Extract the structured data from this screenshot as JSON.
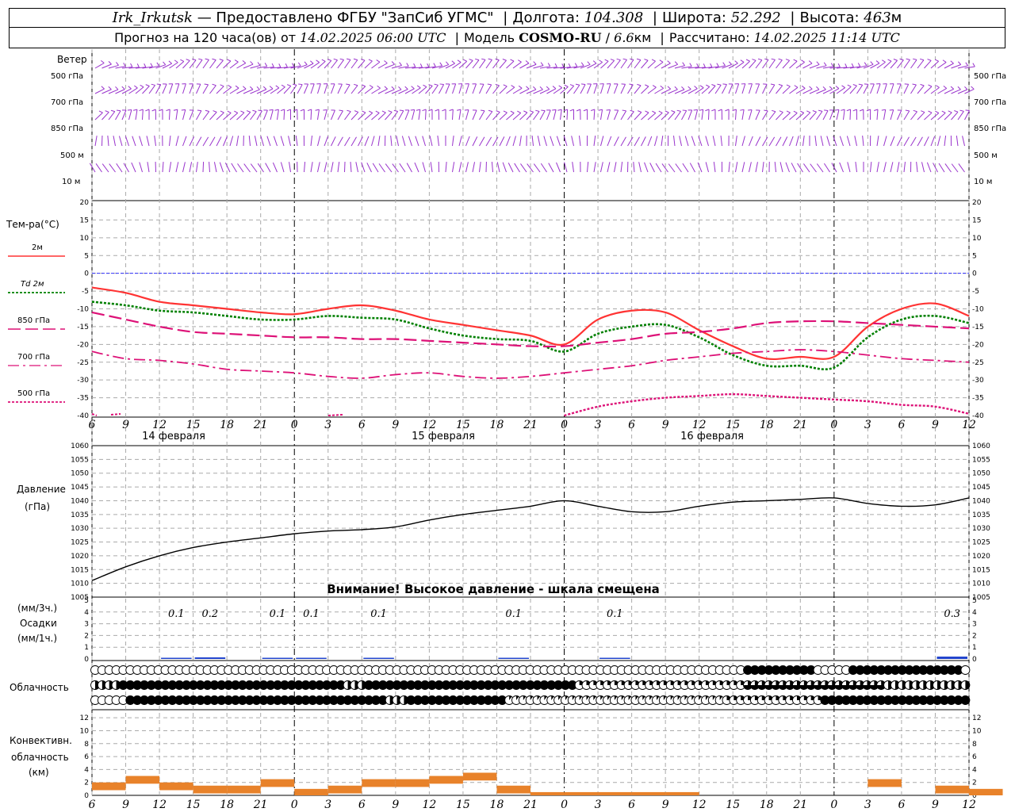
{
  "header": {
    "station": "Irk_Irkutsk",
    "dash": "—",
    "provided": "Предоставлено ФГБУ \"ЗапСиб УГМС\"",
    "lon_label": "Долгота:",
    "lon_value": "104.308",
    "lat_label": "Широта:",
    "lat_value": "52.292",
    "alt_label": "Высота:",
    "alt_value": "463",
    "alt_unit": "м",
    "forecast_label": "Прогноз на 120 часа(ов) от",
    "forecast_time": "14.02.2025 06:00 UTC",
    "model_label": "Модель",
    "model_name": "COSMO-RU",
    "model_slash": "/",
    "model_res": "6.6",
    "model_res_unit": "км",
    "calc_label": "Рассчитано:",
    "calc_time": "14.02.2025 11:14 UTC"
  },
  "labels": {
    "wind": "Ветер",
    "wind_levels": [
      "500 гПа",
      "700 гПа",
      "850 гПа",
      "500 м",
      "10   м"
    ],
    "temp_title": "Тем-ра(°С)",
    "temp_legend": [
      "2м",
      "Td  2м",
      "850 гПа",
      "700 гПа",
      "500 гПа"
    ],
    "pressure_title": "Давление",
    "pressure_unit": "(гПа)",
    "warning": "Внимание! Высокое давление - шкала смещена",
    "precip_3h": "(мм/3ч.)",
    "precip_title": "Осадки",
    "precip_1h": "(мм/1ч.)",
    "cloud_title": "Облачность",
    "conv_title": [
      "Конвективн.",
      "облачность",
      "(км)"
    ]
  },
  "colors": {
    "wind": "#9933cc",
    "t2m": "#ff3333",
    "td2m": "#008000",
    "t850": "#dd1177",
    "t700": "#dd1177",
    "t500": "#dd1177",
    "zero": "#3333ff",
    "pressure": "#000000",
    "precip": "#2244cc",
    "conv": "#e8822a",
    "grid": "#aaaaaa"
  },
  "chart_data": [
    {
      "type": "line",
      "name": "temperature",
      "x": [
        "6",
        "9",
        "12",
        "15",
        "18",
        "21",
        "0",
        "3",
        "6",
        "9",
        "12",
        "15",
        "18",
        "21",
        "0",
        "3",
        "6",
        "9",
        "12",
        "15",
        "18",
        "21",
        "0",
        "3",
        "6",
        "9",
        "12"
      ],
      "days": [
        "14 февраля",
        "15 февраля",
        "16 февраля"
      ],
      "ylim": [
        -40,
        20
      ],
      "yticks": [
        20,
        15,
        10,
        5,
        0,
        -5,
        -10,
        -15,
        -20,
        -25,
        -30,
        -35,
        -40
      ],
      "series": [
        {
          "name": "2м",
          "values": [
            -4,
            -5.5,
            -8,
            -9,
            -10,
            -11,
            -11.5,
            -10,
            -9,
            -10.5,
            -13,
            -14.5,
            -16,
            -17.5,
            -20,
            -13,
            -10.5,
            -11,
            -16,
            -20.5,
            -24,
            -23.5,
            -23.5,
            -15,
            -10,
            -8.5,
            -12
          ]
        },
        {
          "name": "Td  2м",
          "values": [
            -8,
            -9,
            -10.5,
            -11,
            -12,
            -13,
            -13,
            -12,
            -12.5,
            -13,
            -15.5,
            -17.5,
            -18.5,
            -19,
            -22,
            -17,
            -15,
            -14.5,
            -18,
            -23,
            -26,
            -26,
            -26.5,
            -18,
            -13,
            -12,
            -14
          ]
        },
        {
          "name": "850 гПа",
          "values": [
            -11,
            -13,
            -15,
            -16.5,
            -17,
            -17.5,
            -18,
            -18,
            -18.5,
            -18.5,
            -19,
            -19.5,
            -20,
            -20.5,
            -20.5,
            -19.5,
            -18.5,
            -17,
            -16.5,
            -15.5,
            -14,
            -13.5,
            -13.5,
            -14,
            -14.5,
            -15,
            -15.5
          ]
        },
        {
          "name": "700 гПа",
          "values": [
            -22,
            -24,
            -24.5,
            -25.5,
            -27,
            -27.5,
            -28,
            -29,
            -29.5,
            -28.5,
            -28,
            -29,
            -29.5,
            -29,
            -28,
            -27,
            -26,
            -24.5,
            -23.5,
            -22.5,
            -22,
            -21.5,
            -22,
            -23,
            -24,
            -24.5,
            -25
          ]
        },
        {
          "name": "500 гПа",
          "values": [
            null,
            null,
            null,
            null,
            null,
            null,
            null,
            null,
            null,
            null,
            null,
            null,
            null,
            null,
            -40,
            -37.5,
            -36,
            -35,
            -34.5,
            -34,
            -34.5,
            -35,
            -35.5,
            -36,
            -37,
            -37.5,
            -39.5
          ]
        }
      ]
    },
    {
      "type": "line",
      "name": "pressure",
      "x": [
        "6",
        "9",
        "12",
        "15",
        "18",
        "21",
        "0",
        "3",
        "6",
        "9",
        "12",
        "15",
        "18",
        "21",
        "0",
        "3",
        "6",
        "9",
        "12",
        "15",
        "18",
        "21",
        "0",
        "3",
        "6",
        "9",
        "12"
      ],
      "ylim": [
        1005,
        1060
      ],
      "yticks": [
        1060,
        1055,
        1050,
        1045,
        1040,
        1035,
        1030,
        1025,
        1020,
        1015,
        1010,
        1005
      ],
      "values": [
        1011,
        1016,
        1020,
        1023,
        1025,
        1026.5,
        1028,
        1029,
        1029.5,
        1030.5,
        1033,
        1035,
        1036.5,
        1038,
        1040,
        1038,
        1036,
        1036,
        1038,
        1039.5,
        1040,
        1040.5,
        1041,
        1039,
        1038,
        1038.5,
        1041
      ]
    },
    {
      "type": "bar",
      "name": "precipitation",
      "ylim": [
        0,
        5
      ],
      "yticks": [
        5,
        4,
        3,
        2,
        1,
        0
      ],
      "labels_3h": [
        {
          "hour": "12",
          "day": 0,
          "value": "0.1"
        },
        {
          "hour": "15",
          "day": 0,
          "value": "0.2"
        },
        {
          "hour": "21",
          "day": 0,
          "value": "0.1"
        },
        {
          "hour": "0",
          "day": 1,
          "value": "0.1"
        },
        {
          "hour": "6",
          "day": 1,
          "value": "0.1"
        },
        {
          "hour": "18",
          "day": 1,
          "value": "0.1"
        },
        {
          "hour": "3",
          "day": 2,
          "value": "0.1"
        },
        {
          "hour": "9",
          "day": 3,
          "value": "0.3"
        }
      ]
    },
    {
      "type": "bar",
      "name": "convective_cloud",
      "ylim": [
        0,
        13
      ],
      "yticks": [
        12,
        10,
        8,
        6,
        4,
        2,
        0
      ],
      "values": [
        2,
        3,
        2,
        1.5,
        1.5,
        2.5,
        1,
        1.5,
        2.5,
        2.5,
        3,
        3.5,
        1.5,
        0.5,
        0.5,
        0.5,
        0.5,
        0.5,
        0,
        0,
        0,
        0,
        0,
        2.5,
        0,
        1.5,
        1
      ]
    }
  ]
}
